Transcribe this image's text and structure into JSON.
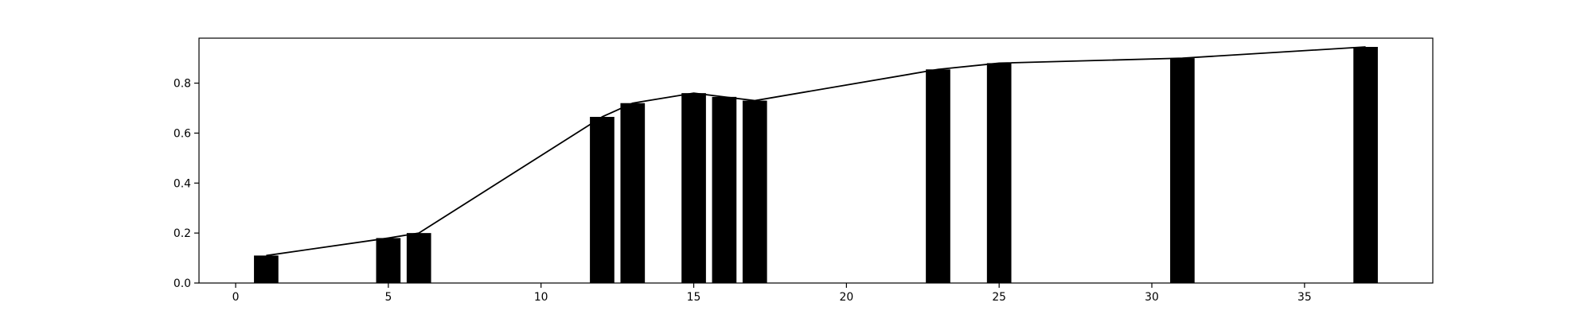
{
  "chart_data": {
    "type": "bar",
    "title": "",
    "xlabel": "",
    "ylabel": "",
    "xlim": [
      -1.2,
      39.2
    ],
    "ylim": [
      0.0,
      0.98
    ],
    "grid": false,
    "x_ticks": [
      0,
      5,
      10,
      15,
      20,
      25,
      30,
      35
    ],
    "y_ticks": [
      0.0,
      0.2,
      0.4,
      0.6,
      0.8
    ],
    "x_tick_labels": [
      "0",
      "5",
      "10",
      "15",
      "20",
      "25",
      "30",
      "35"
    ],
    "y_tick_labels": [
      "0.0",
      "0.2",
      "0.4",
      "0.6",
      "0.8"
    ],
    "bar_width": 0.8,
    "bar_color": "#000000",
    "line_color": "#000000",
    "x": [
      1,
      5,
      6,
      12,
      13,
      15,
      16,
      17,
      23,
      25,
      31,
      37
    ],
    "series": [
      {
        "type": "bar",
        "values": [
          0.11,
          0.18,
          0.2,
          0.665,
          0.72,
          0.76,
          0.745,
          0.73,
          0.855,
          0.88,
          0.9,
          0.945
        ]
      },
      {
        "type": "line",
        "values": [
          0.11,
          0.18,
          0.2,
          0.665,
          0.72,
          0.76,
          0.745,
          0.73,
          0.855,
          0.88,
          0.9,
          0.945
        ]
      }
    ]
  }
}
